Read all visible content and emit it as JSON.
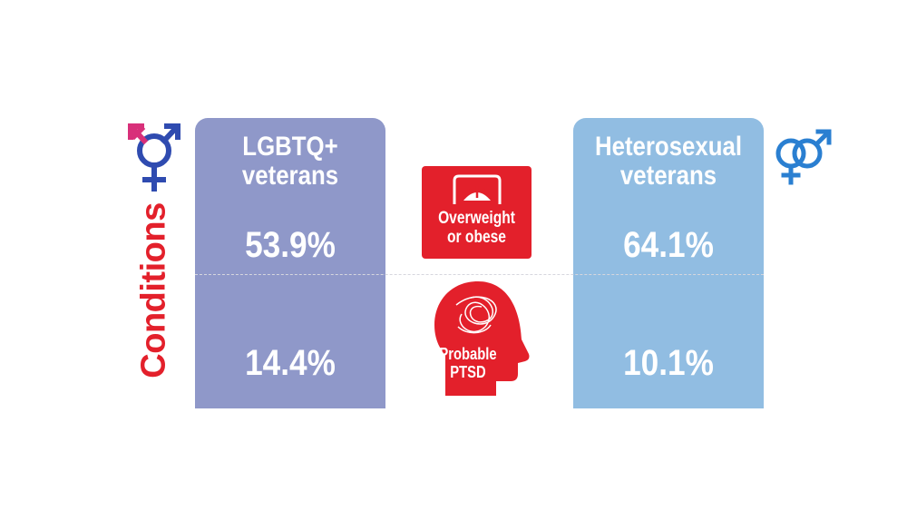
{
  "side_label": "Conditions",
  "left_column": {
    "title": [
      "LGBTQ+",
      "veterans"
    ],
    "values": [
      "53.9%",
      "14.4%"
    ]
  },
  "right_column": {
    "title": [
      "Heterosexual",
      "veterans"
    ],
    "values": [
      "64.1%",
      "10.1%"
    ]
  },
  "conditions": [
    {
      "label": [
        "Overweight",
        "or obese"
      ],
      "icon": "scale-icon"
    },
    {
      "label": [
        "Probable",
        "PTSD"
      ],
      "icon": "head-icon"
    }
  ],
  "colors": {
    "left_column": "#8f98c9",
    "right_column": "#91bde2",
    "accent_red": "#e3202b",
    "symbol_blue": "#2f4bb0",
    "symbol_pink": "#d8307a",
    "symbol_light_blue": "#2a7fd1"
  },
  "symbols": [
    "transgender-symbol-icon",
    "heterosexual-symbol-icon"
  ]
}
